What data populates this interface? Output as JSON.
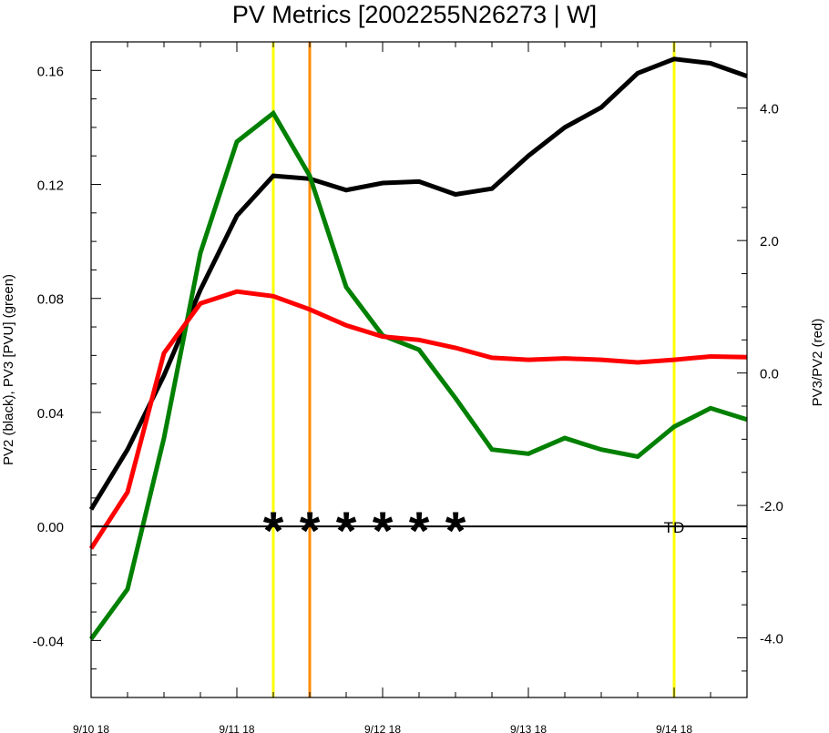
{
  "chart_data": {
    "type": "line",
    "title": "PV Metrics [2002255N26273 | W]",
    "ylabel_left": "PV2 (black), PV3 [PVU] (green)",
    "ylabel_right": "PV3/PV2 (red)",
    "x_unit": "hours since 9/10 18",
    "xlim": [
      0,
      108
    ],
    "x_ticks": [
      {
        "x": 0,
        "label": "9/10 18"
      },
      {
        "x": 24,
        "label": "9/11 18"
      },
      {
        "x": 48,
        "label": "9/12 18"
      },
      {
        "x": 72,
        "label": "9/13 18"
      },
      {
        "x": 96,
        "label": "9/14 18"
      }
    ],
    "ylim_left": [
      -0.06,
      0.17
    ],
    "yticks_left": [
      {
        "v": -0.04,
        "label": "-0.04"
      },
      {
        "v": 0.0,
        "label": "0.00"
      },
      {
        "v": 0.04,
        "label": "0.04"
      },
      {
        "v": 0.08,
        "label": "0.08"
      },
      {
        "v": 0.12,
        "label": "0.12"
      },
      {
        "v": 0.16,
        "label": "0.16"
      }
    ],
    "ylim_right": [
      -4.9,
      5.0
    ],
    "yticks_right": [
      {
        "v": -4.0,
        "label": "-4.0"
      },
      {
        "v": -2.0,
        "label": "-2.0"
      },
      {
        "v": 0.0,
        "label": "0.0"
      },
      {
        "v": 2.0,
        "label": "2.0"
      },
      {
        "v": 4.0,
        "label": "4.0"
      }
    ],
    "x": [
      0,
      6,
      12,
      18,
      24,
      30,
      36,
      42,
      48,
      54,
      60,
      66,
      72,
      78,
      84,
      90,
      96,
      102,
      108
    ],
    "series": [
      {
        "axis": "left",
        "color": "#000000",
        "values": [
          0.006,
          0.027,
          0.053,
          0.083,
          0.109,
          0.123,
          0.122,
          0.118,
          0.1205,
          0.121,
          0.1165,
          0.1185,
          0.13,
          0.14,
          0.147,
          0.159,
          0.164,
          0.1625,
          0.158
        ]
      },
      {
        "axis": "left",
        "color": "#008000",
        "values": [
          -0.0395,
          -0.022,
          0.031,
          0.096,
          0.135,
          0.145,
          0.123,
          0.084,
          0.067,
          0.062,
          0.045,
          0.027,
          0.0255,
          0.031,
          0.027,
          0.0245,
          0.035,
          0.0415,
          0.0375
        ]
      },
      {
        "axis": "right",
        "color": "#ff0000",
        "values": [
          -2.65,
          -1.8,
          0.3,
          1.05,
          1.23,
          1.16,
          0.96,
          0.72,
          0.55,
          0.5,
          0.38,
          0.23,
          0.2,
          0.22,
          0.2,
          0.16,
          0.2,
          0.25,
          0.24
        ]
      }
    ],
    "zero_line": 0.0,
    "vertical_lines": [
      {
        "x": 30,
        "color": "#ffff00"
      },
      {
        "x": 36,
        "color": "#ff8c00"
      },
      {
        "x": 96,
        "color": "#ffff00"
      }
    ],
    "markers": [
      {
        "x": 30,
        "symbol": "*"
      },
      {
        "x": 36,
        "symbol": "*"
      },
      {
        "x": 42,
        "symbol": "*"
      },
      {
        "x": 48,
        "symbol": "*"
      },
      {
        "x": 54,
        "symbol": "*"
      },
      {
        "x": 60,
        "symbol": "*"
      }
    ],
    "annotations": [
      {
        "x": 96,
        "text": "TD"
      }
    ]
  }
}
